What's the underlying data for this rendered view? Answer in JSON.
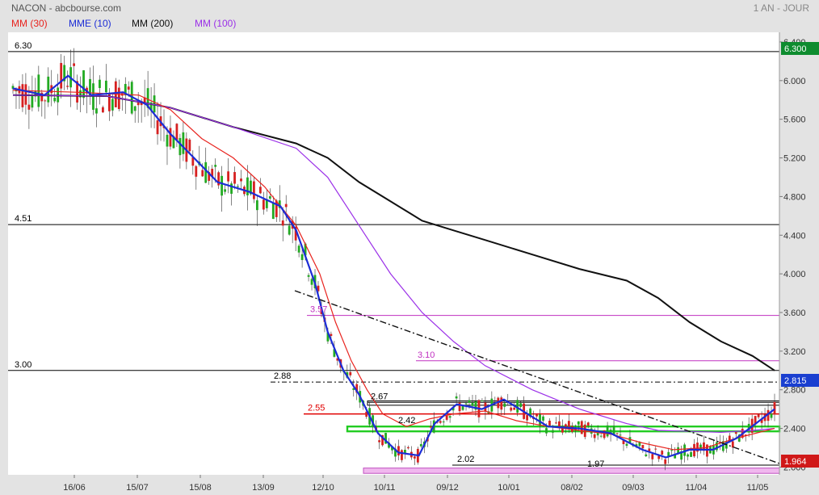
{
  "header": {
    "title": "NACON - abcbourse.com",
    "period": "1 AN - JOUR"
  },
  "legend": [
    {
      "label": "MM (30)",
      "color": "#e8231e"
    },
    {
      "label": "MME (10)",
      "color": "#1c2cd6"
    },
    {
      "label": "MM (200)",
      "color": "#111111"
    },
    {
      "label": "MM (100)",
      "color": "#9b30e8"
    }
  ],
  "chart_data": {
    "type": "candlestick",
    "x_ticks": [
      "16/06",
      "15/07",
      "15/08",
      "13/09",
      "12/10",
      "10/11",
      "09/12",
      "10/01",
      "08/02",
      "09/03",
      "11/04",
      "11/05"
    ],
    "y_ticks": [
      "6.400",
      "6.000",
      "5.600",
      "5.200",
      "4.800",
      "4.400",
      "4.000",
      "3.600",
      "3.200",
      "2.800",
      "2.400",
      "2.000"
    ],
    "ylim": [
      1.92,
      6.5
    ],
    "last_price": "2.815",
    "price_label_current": "6.300",
    "price_label_low": "1.964",
    "levels": [
      {
        "label": "6.30",
        "value": 6.3,
        "color": "#000000"
      },
      {
        "label": "4.51",
        "value": 4.51,
        "color": "#000000"
      },
      {
        "label": "3.00",
        "value": 3.0,
        "color": "#000000"
      },
      {
        "label": "3.57",
        "value": 3.57,
        "color": "#c030c0"
      },
      {
        "label": "3.10",
        "value": 3.1,
        "color": "#c030c0"
      },
      {
        "label": "2.88",
        "value": 2.88,
        "color": "#000000"
      },
      {
        "label": "2.67",
        "value": 2.67,
        "color": "#000000"
      },
      {
        "label": "2.55",
        "value": 2.55,
        "color": "#e00000"
      },
      {
        "label": "2.42",
        "value": 2.42,
        "color": "#000000"
      },
      {
        "label": "2.02",
        "value": 2.02,
        "color": "#000000"
      },
      {
        "label": "1.97",
        "value": 1.97,
        "color": "#000000"
      }
    ],
    "series": [
      {
        "name": "MM (200)",
        "color": "#111111",
        "values": [
          [
            5.85,
            5.85
          ],
          [
            60,
            5.84
          ],
          [
            100,
            5.72
          ],
          [
            140,
            5.52
          ],
          [
            180,
            5.35
          ],
          [
            200,
            5.2
          ],
          [
            220,
            4.95
          ],
          [
            240,
            4.75
          ],
          [
            260,
            4.55
          ],
          [
            280,
            4.45
          ],
          [
            300,
            4.35
          ],
          [
            330,
            4.2
          ],
          [
            360,
            4.05
          ],
          [
            390,
            3.93
          ],
          [
            410,
            3.75
          ],
          [
            430,
            3.5
          ],
          [
            450,
            3.3
          ],
          [
            470,
            3.15
          ],
          [
            484,
            3.0
          ]
        ]
      },
      {
        "name": "MM (100)",
        "color": "#9b30e8",
        "values": [
          [
            0,
            5.85
          ],
          [
            60,
            5.84
          ],
          [
            100,
            5.72
          ],
          [
            140,
            5.52
          ],
          [
            180,
            5.3
          ],
          [
            200,
            5.0
          ],
          [
            220,
            4.5
          ],
          [
            240,
            4.0
          ],
          [
            260,
            3.6
          ],
          [
            280,
            3.3
          ],
          [
            300,
            3.05
          ],
          [
            330,
            2.8
          ],
          [
            360,
            2.6
          ],
          [
            390,
            2.45
          ],
          [
            410,
            2.38
          ],
          [
            430,
            2.37
          ],
          [
            450,
            2.36
          ],
          [
            470,
            2.38
          ],
          [
            484,
            2.4
          ]
        ]
      },
      {
        "name": "MM (30)",
        "color": "#e8231e",
        "values": [
          [
            0,
            5.9
          ],
          [
            40,
            5.88
          ],
          [
            80,
            5.85
          ],
          [
            100,
            5.7
          ],
          [
            120,
            5.4
          ],
          [
            140,
            5.2
          ],
          [
            160,
            4.9
          ],
          [
            180,
            4.5
          ],
          [
            195,
            4.0
          ],
          [
            205,
            3.5
          ],
          [
            215,
            3.1
          ],
          [
            225,
            2.8
          ],
          [
            235,
            2.55
          ],
          [
            250,
            2.42
          ],
          [
            265,
            2.5
          ],
          [
            280,
            2.55
          ],
          [
            300,
            2.58
          ],
          [
            320,
            2.48
          ],
          [
            340,
            2.42
          ],
          [
            360,
            2.38
          ],
          [
            380,
            2.34
          ],
          [
            400,
            2.25
          ],
          [
            420,
            2.18
          ],
          [
            440,
            2.2
          ],
          [
            460,
            2.3
          ],
          [
            484,
            2.4
          ]
        ]
      },
      {
        "name": "MME (10)",
        "color": "#1c2cd6",
        "values": [
          [
            0,
            5.92
          ],
          [
            20,
            5.85
          ],
          [
            35,
            6.05
          ],
          [
            50,
            5.85
          ],
          [
            70,
            5.88
          ],
          [
            85,
            5.75
          ],
          [
            100,
            5.45
          ],
          [
            115,
            5.2
          ],
          [
            130,
            4.95
          ],
          [
            150,
            4.85
          ],
          [
            170,
            4.7
          ],
          [
            180,
            4.45
          ],
          [
            192,
            3.9
          ],
          [
            200,
            3.4
          ],
          [
            210,
            3.0
          ],
          [
            220,
            2.75
          ],
          [
            232,
            2.35
          ],
          [
            245,
            2.15
          ],
          [
            258,
            2.12
          ],
          [
            268,
            2.45
          ],
          [
            282,
            2.65
          ],
          [
            298,
            2.6
          ],
          [
            312,
            2.7
          ],
          [
            322,
            2.6
          ],
          [
            340,
            2.42
          ],
          [
            360,
            2.4
          ],
          [
            380,
            2.35
          ],
          [
            400,
            2.18
          ],
          [
            415,
            2.1
          ],
          [
            430,
            2.18
          ],
          [
            445,
            2.18
          ],
          [
            460,
            2.3
          ],
          [
            472,
            2.45
          ],
          [
            484,
            2.6
          ]
        ]
      }
    ],
    "candles": {
      "n": 238,
      "seed": 7
    }
  },
  "icons": {
    "candle_up": "#22aa22",
    "candle_down": "#d62020"
  }
}
